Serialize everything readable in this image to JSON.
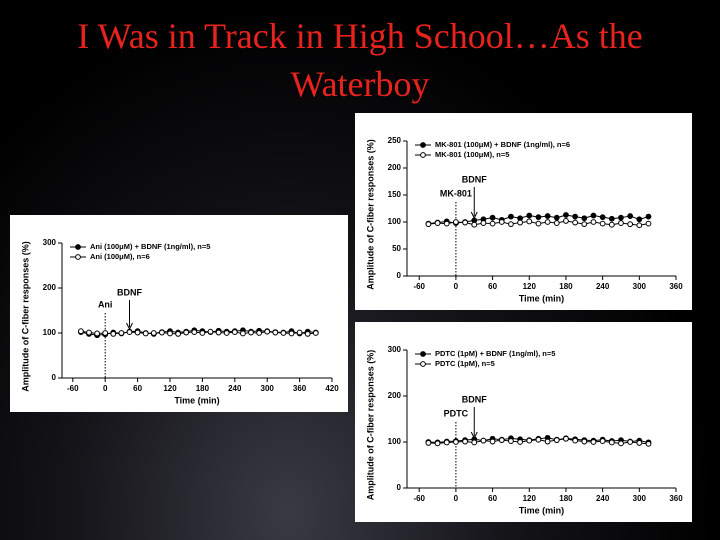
{
  "slide": {
    "title": "I Was in Track in High School…As the Waterboy"
  },
  "chart_data": [
    {
      "type": "line",
      "ylabel": "Amplitude of C-fiber responses (%)",
      "xlabel": "Time (min)",
      "annotations": [
        "Ani",
        "BDNF"
      ],
      "xlim": [
        -80,
        420
      ],
      "ylim": [
        0,
        300
      ],
      "xticks": [
        -60,
        0,
        60,
        120,
        180,
        240,
        300,
        360,
        420
      ],
      "yticks": [
        0,
        100,
        200,
        300
      ],
      "x": [
        -45,
        -30,
        -15,
        0,
        15,
        30,
        45,
        60,
        75,
        90,
        105,
        120,
        135,
        150,
        165,
        180,
        195,
        210,
        225,
        240,
        255,
        270,
        285,
        300,
        315,
        330,
        345,
        360,
        375,
        390
      ],
      "series": [
        {
          "name": "Ani (100μM) + BDNF (1ng/ml), n=5",
          "color": "#000000",
          "values": [
            102,
            98,
            95,
            97,
            101,
            99,
            103,
            104,
            100,
            98,
            102,
            104,
            101,
            103,
            106,
            104,
            102,
            105,
            103,
            104,
            106,
            103,
            105,
            104,
            102,
            101,
            104,
            99,
            103,
            101
          ]
        },
        {
          "name": "Ani (100μM), n=6",
          "color": "#ffffff",
          "values": [
            104,
            101,
            99,
            100,
            98,
            100,
            102,
            101,
            99,
            100,
            101,
            99,
            98,
            101,
            102,
            100,
            103,
            101,
            100,
            102,
            99,
            101,
            100,
            103,
            101,
            100,
            99,
            101,
            98,
            100
          ]
        }
      ]
    },
    {
      "type": "line",
      "ylabel": "Amplitude of C-fiber responses (%)",
      "xlabel": "Time (min)",
      "annotations": [
        "MK-801",
        "BDNF"
      ],
      "xlim": [
        -80,
        360
      ],
      "ylim": [
        0,
        250
      ],
      "xticks": [
        -60,
        0,
        60,
        120,
        180,
        240,
        300,
        360
      ],
      "yticks": [
        0,
        50,
        100,
        150,
        200,
        250
      ],
      "x": [
        -45,
        -30,
        -15,
        0,
        15,
        30,
        45,
        60,
        75,
        90,
        105,
        120,
        135,
        150,
        165,
        180,
        195,
        210,
        225,
        240,
        255,
        270,
        285,
        300,
        315
      ],
      "series": [
        {
          "name": "MK-801 (100μM) + BDNF (1ng/ml), n=6",
          "color": "#000000",
          "values": [
            97,
            99,
            101,
            98,
            100,
            103,
            105,
            108,
            104,
            110,
            107,
            112,
            109,
            111,
            108,
            113,
            110,
            107,
            112,
            109,
            106,
            108,
            111,
            105,
            110
          ]
        },
        {
          "name": "MK-801 (100μM), n=5",
          "color": "#ffffff",
          "values": [
            96,
            98,
            97,
            100,
            99,
            95,
            98,
            97,
            100,
            96,
            99,
            101,
            97,
            100,
            98,
            102,
            99,
            96,
            100,
            97,
            95,
            98,
            96,
            94,
            97
          ]
        }
      ]
    },
    {
      "type": "line",
      "ylabel": "Amplitude of C-fiber responses (%)",
      "xlabel": "Time (min)",
      "annotations": [
        "PDTC",
        "BDNF"
      ],
      "xlim": [
        -80,
        360
      ],
      "ylim": [
        0,
        300
      ],
      "xticks": [
        -60,
        0,
        60,
        120,
        180,
        240,
        300,
        360
      ],
      "yticks": [
        0,
        100,
        200,
        300
      ],
      "x": [
        -45,
        -30,
        -15,
        0,
        15,
        30,
        45,
        60,
        75,
        90,
        105,
        120,
        135,
        150,
        165,
        180,
        195,
        210,
        225,
        240,
        255,
        270,
        285,
        300,
        315
      ],
      "series": [
        {
          "name": "PDTC (1pM) + BDNF (1ng/ml), n=5",
          "color": "#000000",
          "values": [
            100,
            99,
            101,
            102,
            104,
            106,
            103,
            107,
            105,
            108,
            106,
            104,
            107,
            109,
            105,
            108,
            106,
            104,
            103,
            105,
            102,
            104,
            101,
            103,
            99
          ]
        },
        {
          "name": "PDTC (1pM), n=5",
          "color": "#ffffff",
          "values": [
            98,
            97,
            99,
            100,
            101,
            99,
            103,
            101,
            104,
            102,
            100,
            103,
            105,
            101,
            104,
            107,
            103,
            101,
            100,
            102,
            99,
            97,
            100,
            98,
            96
          ]
        }
      ]
    }
  ]
}
